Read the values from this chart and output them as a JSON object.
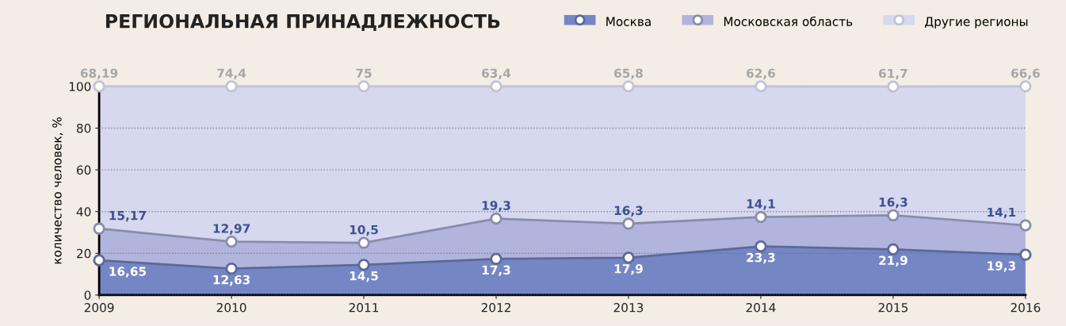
{
  "chart_data": {
    "type": "area",
    "title": "РЕГИОНАЛЬНАЯ ПРИНАДЛЕЖНОСТЬ",
    "ylabel": "количество человек, %",
    "x": [
      2009,
      2010,
      2011,
      2012,
      2013,
      2014,
      2015,
      2016
    ],
    "xlim": [
      2009,
      2016
    ],
    "xticks": [
      2009,
      2010,
      2011,
      2012,
      2013,
      2014,
      2015,
      2016
    ],
    "ylim": [
      0,
      100
    ],
    "yticks": [
      0,
      20,
      40,
      60,
      80,
      100
    ],
    "stacked": true,
    "grid": "y",
    "legend": "top right",
    "marker": "circle",
    "series": [
      {
        "name": "Москва",
        "color": "#7586c4",
        "values": [
          16.65,
          12.63,
          14.5,
          17.3,
          17.9,
          23.3,
          21.9,
          19.3
        ],
        "value_labels": [
          "16,65",
          "12,63",
          "14,5",
          "17,3",
          "17,9",
          "23,3",
          "21,9",
          "19,3"
        ]
      },
      {
        "name": "Московская область",
        "color": "#b1b4dc",
        "values": [
          15.17,
          12.97,
          10.5,
          19.3,
          16.3,
          14.1,
          16.3,
          14.1
        ],
        "value_labels": [
          "15,17",
          "12,97",
          "10,5",
          "19,3",
          "16,3",
          "14,1",
          "16,3",
          "14,1"
        ]
      },
      {
        "name": "Другие регионы",
        "color": "#d5d8ee",
        "values": [
          68.19,
          74.4,
          75,
          63.4,
          65.8,
          62.6,
          61.7,
          66.6
        ],
        "value_labels": [
          "68,19",
          "74,4",
          "75",
          "63,4",
          "65,8",
          "62,6",
          "61,7",
          "66,6"
        ]
      }
    ]
  }
}
